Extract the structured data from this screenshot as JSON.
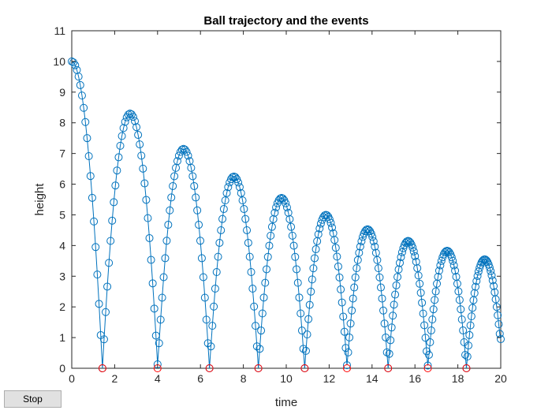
{
  "controls": {
    "stop_label": "Stop"
  },
  "chart_data": {
    "type": "line",
    "title": "Ball trajectory and the events",
    "xlabel": "time",
    "ylabel": "height",
    "xlim": [
      0,
      20
    ],
    "ylim": [
      0,
      11
    ],
    "xticks": [
      0,
      2,
      4,
      6,
      8,
      10,
      12,
      14,
      16,
      18,
      20
    ],
    "yticks": [
      0,
      1,
      2,
      3,
      4,
      5,
      6,
      7,
      8,
      9,
      10,
      11
    ],
    "grid": false,
    "legend": "none",
    "bounces": [
      {
        "t0": 0.0,
        "t1": 1.43,
        "peak_t": 0.0,
        "peak_h": 10.0
      },
      {
        "t0": 1.43,
        "t1": 4.0,
        "peak_t": 2.72,
        "peak_h": 8.3
      },
      {
        "t0": 4.0,
        "t1": 6.42,
        "peak_t": 5.21,
        "peak_h": 7.15
      },
      {
        "t0": 6.42,
        "t1": 8.7,
        "peak_t": 7.56,
        "peak_h": 6.25
      },
      {
        "t0": 8.7,
        "t1": 10.86,
        "peak_t": 9.78,
        "peak_h": 5.55
      },
      {
        "t0": 10.86,
        "t1": 12.83,
        "peak_t": 11.85,
        "peak_h": 5.0
      },
      {
        "t0": 12.83,
        "t1": 14.75,
        "peak_t": 13.79,
        "peak_h": 4.53
      },
      {
        "t0": 14.75,
        "t1": 16.6,
        "peak_t": 15.68,
        "peak_h": 4.15
      },
      {
        "t0": 16.6,
        "t1": 18.4,
        "peak_t": 17.5,
        "peak_h": 3.83
      },
      {
        "t0": 18.4,
        "t1": 20.0,
        "peak_t": 19.25,
        "peak_h": 3.55
      }
    ],
    "events": {
      "name": "events",
      "x": [
        1.43,
        4.0,
        6.42,
        8.7,
        10.86,
        12.83,
        14.75,
        16.6,
        18.4
      ],
      "y": [
        0,
        0,
        0,
        0,
        0,
        0,
        0,
        0,
        0
      ]
    },
    "end_point": {
      "x": 20.0,
      "y": 0.95
    },
    "colors": {
      "trajectory": "#0072bd",
      "events": "#ff0000"
    }
  }
}
